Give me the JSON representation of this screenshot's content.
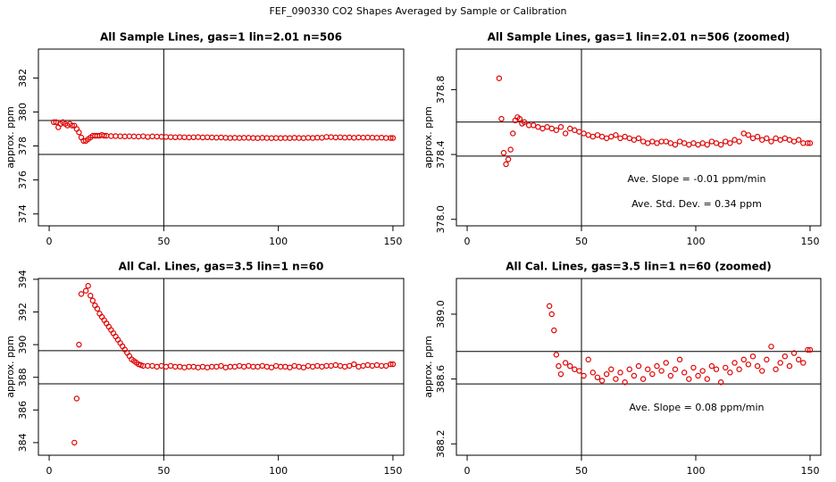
{
  "title": "FEF_090330  CO2 Shapes Averaged by Sample or Calibration",
  "chart_data": [
    {
      "type": "scatter",
      "title": "All Sample Lines, gas=1 lin=2.01 n=506",
      "ylabel": "approx. ppm",
      "color": "#e00000",
      "xlim": [
        -4.7,
        154.7
      ],
      "xticks": [
        0,
        50,
        100,
        150
      ],
      "ylim": [
        373.3,
        383.7
      ],
      "yticks": [
        374,
        376,
        378,
        380,
        382
      ],
      "hlines": [
        379.5,
        377.5
      ],
      "vline": 50,
      "x": [
        2,
        3,
        4,
        5,
        6,
        7,
        8,
        9,
        10,
        11,
        12,
        13,
        14,
        15,
        16,
        17,
        18,
        19,
        20,
        21,
        22,
        23,
        24,
        25,
        27,
        29,
        31,
        33,
        35,
        37,
        39,
        41,
        43,
        45,
        47,
        49,
        51,
        53,
        55,
        57,
        59,
        61,
        63,
        65,
        67,
        69,
        71,
        73,
        75,
        77,
        79,
        81,
        83,
        85,
        87,
        89,
        91,
        93,
        95,
        97,
        99,
        101,
        103,
        105,
        107,
        109,
        111,
        113,
        115,
        117,
        119,
        121,
        123,
        125,
        127,
        129,
        131,
        133,
        135,
        137,
        139,
        141,
        143,
        145,
        147,
        149,
        150
      ],
      "values": [
        379.4,
        379.4,
        379.1,
        379.3,
        379.4,
        379.3,
        379.2,
        379.3,
        379.2,
        379.2,
        379.0,
        378.8,
        378.5,
        378.3,
        378.3,
        378.4,
        378.5,
        378.6,
        378.6,
        378.6,
        378.6,
        378.65,
        378.6,
        378.6,
        378.58,
        378.58,
        378.57,
        378.56,
        378.57,
        378.56,
        378.55,
        378.57,
        378.53,
        378.56,
        378.55,
        378.54,
        378.53,
        378.52,
        378.51,
        378.52,
        378.51,
        378.5,
        378.51,
        378.52,
        378.5,
        378.51,
        378.5,
        378.49,
        378.5,
        378.48,
        378.47,
        378.48,
        378.47,
        378.48,
        378.48,
        378.47,
        378.46,
        378.48,
        378.47,
        378.46,
        378.47,
        378.46,
        378.47,
        378.46,
        378.48,
        378.47,
        378.46,
        378.48,
        378.47,
        378.49,
        378.48,
        378.53,
        378.52,
        378.5,
        378.51,
        378.49,
        378.5,
        378.48,
        378.5,
        378.49,
        378.5,
        378.49,
        378.48,
        378.49,
        378.47,
        378.47,
        378.47
      ]
    },
    {
      "type": "scatter",
      "title": "All Sample Lines, gas=1 lin=2.01 n=506 (zoomed)",
      "ylabel": "approx. ppm",
      "color": "#e00000",
      "xlim": [
        -4.7,
        154.7
      ],
      "xticks": [
        0,
        50,
        100,
        150
      ],
      "ylim": [
        377.96,
        379.05
      ],
      "yticks": [
        {
          "value": 378,
          "label": "378.0"
        },
        378.4,
        378.8
      ],
      "hlines": [
        378.6,
        378.39
      ],
      "vline": 50,
      "annotations": [
        "Ave. Slope = -0.01  ppm/min",
        "Ave. Std. Dev. = 0.34  ppm"
      ],
      "x": [
        14,
        15,
        16,
        17,
        18,
        19,
        20,
        21,
        22,
        23,
        24,
        25,
        27,
        29,
        31,
        33,
        35,
        37,
        39,
        41,
        43,
        45,
        47,
        49,
        51,
        53,
        55,
        57,
        59,
        61,
        63,
        65,
        67,
        69,
        71,
        73,
        75,
        77,
        79,
        81,
        83,
        85,
        87,
        89,
        91,
        93,
        95,
        97,
        99,
        101,
        103,
        105,
        107,
        109,
        111,
        113,
        115,
        117,
        119,
        121,
        123,
        125,
        127,
        129,
        131,
        133,
        135,
        137,
        139,
        141,
        143,
        145,
        147,
        149,
        150
      ],
      "values": [
        378.87,
        378.62,
        378.41,
        378.34,
        378.37,
        378.43,
        378.53,
        378.61,
        378.63,
        378.62,
        378.59,
        378.6,
        378.58,
        378.58,
        378.57,
        378.56,
        378.57,
        378.56,
        378.55,
        378.57,
        378.53,
        378.56,
        378.55,
        378.54,
        378.53,
        378.52,
        378.51,
        378.52,
        378.51,
        378.5,
        378.51,
        378.52,
        378.5,
        378.51,
        378.5,
        378.49,
        378.5,
        378.48,
        378.47,
        378.48,
        378.47,
        378.48,
        378.48,
        378.47,
        378.46,
        378.48,
        378.47,
        378.46,
        378.47,
        378.46,
        378.47,
        378.46,
        378.48,
        378.47,
        378.46,
        378.48,
        378.47,
        378.49,
        378.48,
        378.53,
        378.52,
        378.5,
        378.51,
        378.49,
        378.5,
        378.48,
        378.5,
        378.49,
        378.5,
        378.49,
        378.48,
        378.49,
        378.47,
        378.47,
        378.47
      ]
    },
    {
      "type": "scatter",
      "title": "All Cal. Lines, gas=3.5 lin=1 n=60",
      "ylabel": "approx. ppm",
      "color": "#e00000",
      "xlim": [
        -4.7,
        154.7
      ],
      "xticks": [
        0,
        50,
        100,
        150
      ],
      "ylim": [
        383.23,
        394.05
      ],
      "yticks": [
        384,
        386,
        388,
        390,
        392,
        394
      ],
      "hlines": [
        389.63,
        387.6
      ],
      "vline": 50,
      "x": [
        11,
        12,
        13,
        14,
        16,
        17,
        18,
        19,
        20,
        21,
        22,
        23,
        24,
        25,
        26,
        27,
        28,
        29,
        30,
        31,
        32,
        33,
        34,
        35,
        36,
        37,
        38,
        39,
        40,
        41,
        43,
        45,
        47,
        49,
        51,
        53,
        55,
        57,
        59,
        61,
        63,
        65,
        67,
        69,
        71,
        73,
        75,
        77,
        79,
        81,
        83,
        85,
        87,
        89,
        91,
        93,
        95,
        97,
        99,
        101,
        103,
        105,
        107,
        109,
        111,
        113,
        115,
        117,
        119,
        121,
        123,
        125,
        127,
        129,
        131,
        133,
        135,
        137,
        139,
        141,
        143,
        145,
        147,
        149,
        150
      ],
      "values": [
        384.0,
        386.7,
        390.0,
        393.1,
        393.3,
        393.6,
        393.0,
        392.7,
        392.4,
        392.2,
        391.9,
        391.7,
        391.5,
        391.3,
        391.1,
        390.9,
        390.7,
        390.5,
        390.3,
        390.1,
        389.9,
        389.7,
        389.5,
        389.3,
        389.1,
        389.0,
        388.9,
        388.8,
        388.75,
        388.7,
        388.7,
        388.7,
        388.65,
        388.7,
        388.65,
        388.7,
        388.65,
        388.65,
        388.6,
        388.65,
        388.65,
        388.6,
        388.65,
        388.6,
        388.65,
        388.65,
        388.7,
        388.6,
        388.65,
        388.65,
        388.7,
        388.65,
        388.7,
        388.65,
        388.65,
        388.7,
        388.65,
        388.6,
        388.7,
        388.65,
        388.65,
        388.6,
        388.7,
        388.65,
        388.6,
        388.7,
        388.65,
        388.7,
        388.65,
        388.7,
        388.7,
        388.75,
        388.7,
        388.65,
        388.7,
        388.8,
        388.65,
        388.7,
        388.75,
        388.7,
        388.75,
        388.7,
        388.7,
        388.8,
        388.8
      ]
    },
    {
      "type": "scatter",
      "title": "All Cal. Lines, gas=3.5 lin=1 n=60 (zoomed)",
      "ylabel": "approx. ppm",
      "color": "#e00000",
      "xlim": [
        -4.7,
        154.7
      ],
      "xticks": [
        0,
        50,
        100,
        150
      ],
      "ylim": [
        388.13,
        389.22
      ],
      "yticks": [
        388.2,
        388.6,
        {
          "value": 389,
          "label": "389.0"
        }
      ],
      "hlines": [
        388.77,
        388.57
      ],
      "vline": 50,
      "annotations": [
        "Ave. Slope = 0.08  ppm/min"
      ],
      "x": [
        36,
        37,
        38,
        39,
        40,
        41,
        43,
        45,
        47,
        49,
        51,
        53,
        55,
        57,
        59,
        61,
        63,
        65,
        67,
        69,
        71,
        73,
        75,
        77,
        79,
        81,
        83,
        85,
        87,
        89,
        91,
        93,
        95,
        97,
        99,
        101,
        103,
        105,
        107,
        109,
        111,
        113,
        115,
        117,
        119,
        121,
        123,
        125,
        127,
        129,
        131,
        133,
        135,
        137,
        139,
        141,
        143,
        145,
        147,
        149,
        150
      ],
      "values": [
        389.05,
        389.0,
        388.9,
        388.75,
        388.68,
        388.63,
        388.7,
        388.68,
        388.66,
        388.65,
        388.62,
        388.72,
        388.64,
        388.61,
        388.59,
        388.63,
        388.66,
        388.6,
        388.64,
        388.58,
        388.66,
        388.62,
        388.68,
        388.6,
        388.66,
        388.63,
        388.68,
        388.65,
        388.7,
        388.62,
        388.66,
        388.72,
        388.64,
        388.6,
        388.67,
        388.62,
        388.65,
        388.6,
        388.68,
        388.66,
        388.58,
        388.67,
        388.64,
        388.7,
        388.66,
        388.72,
        388.69,
        388.74,
        388.68,
        388.65,
        388.72,
        388.8,
        388.66,
        388.7,
        388.74,
        388.68,
        388.76,
        388.72,
        388.7,
        388.78,
        388.78
      ]
    }
  ]
}
